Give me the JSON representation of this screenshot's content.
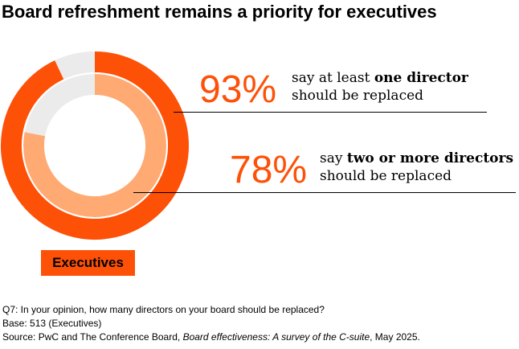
{
  "chart_data": {
    "type": "donut",
    "title": "Board refreshment remains a priority for executives",
    "series": [
      {
        "value_label": "93%",
        "value": 93,
        "text_before": "say at least ",
        "text_bold": "one director",
        "text_after": "should be replaced",
        "color": "#fd5108"
      },
      {
        "value_label": "78%",
        "value": 78,
        "text_before": "say ",
        "text_bold": "two or more directors",
        "text_after": "should be replaced",
        "color": "#ffa973"
      }
    ],
    "remainder_color": "#ebebeb",
    "category_label": "Executives"
  },
  "footnotes": {
    "question": "Q7: In your opinion, how many directors on your board should be replaced?",
    "base": "Base: 513 (Executives)",
    "source_prefix": "Source: PwC and The Conference Board, ",
    "source_title": "Board effectiveness: A survey of the C-suite",
    "source_suffix": ", May 2025."
  }
}
